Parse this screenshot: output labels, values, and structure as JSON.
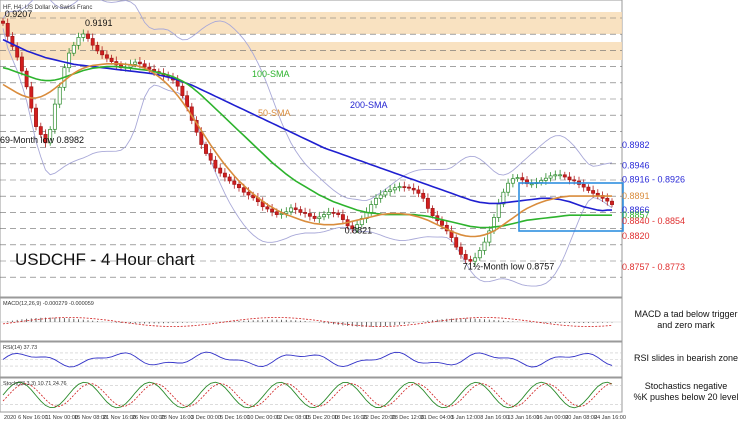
{
  "header": {
    "instrument_text": "HF, H4: US Dollar vs Swiss Franc"
  },
  "chart_data": {
    "type": "line",
    "title": "USDCHF - 4 Hour chart",
    "date_ticks": [
      "2020",
      "6 Nov 16:00",
      "11 Nov 00:00",
      "15 Nov 08:00",
      "21 Nov 16:00",
      "26 Nov 00:00",
      "28 Nov 16:00",
      "3 Dec 00:00",
      "5 Dec 16:00",
      "10 Dec 00:00",
      "12 Dec 08:00",
      "15 Dec 20:00",
      "18 Dec 16:00",
      "22 Dec 20:00",
      "28 Dec 12:00",
      "31 Dec 04:00",
      "5 Jan 12:00",
      "8 Jan 16:00",
      "13 Jan 16:00",
      "16 Jan 00:00",
      "20 Jan 08:00",
      "24 Jan 16:00"
    ],
    "price_range": [
      0.872,
      0.923
    ],
    "price_levels": [
      {
        "label": "0.8982",
        "value": 0.8982,
        "color": "#2a2ad8"
      },
      {
        "label": "0.8946",
        "value": 0.8946,
        "color": "#2a2ad8"
      },
      {
        "label": "0.8916 - 0.8926",
        "value": 0.8921,
        "color": "#2a2ad8"
      },
      {
        "label": "0.8891",
        "value": 0.8891,
        "color": "#d98c3c"
      },
      {
        "label": "0.8866",
        "value": 0.8866,
        "color": "#2a2ad8"
      },
      {
        "label": "0.8857",
        "value": 0.8857,
        "color": "#2db32d"
      },
      {
        "label": "0.8840 - 0.8854",
        "value": 0.8847,
        "color": "#e03030"
      },
      {
        "label": "0.8820",
        "value": 0.882,
        "color": "#e03030"
      },
      {
        "label": "0.8757 - 0.8773",
        "value": 0.8765,
        "color": "#e03030"
      }
    ],
    "annotations": [
      {
        "text": "0.9207",
        "x_index": 1,
        "value": 0.9207
      },
      {
        "text": "0.9191",
        "x_index": 18,
        "value": 0.9191
      },
      {
        "text": "69-Month low 0.8982",
        "x_index": 0,
        "value": 0.8982
      },
      {
        "text": "0.8821",
        "x_index": 73,
        "value": 0.8821
      },
      {
        "text": "71½-Month low 0.8757",
        "x_index": 98,
        "value": 0.8757
      }
    ],
    "sma_labels": {
      "sma100": "100-SMA",
      "sma50": "50-SMA",
      "sma200": "200-SMA"
    },
    "series": [
      {
        "name": "Close",
        "color": "#222222",
        "values": [
          0.9199,
          0.9176,
          0.9158,
          0.9139,
          0.9114,
          0.9086,
          0.9048,
          0.9015,
          0.9001,
          0.8986,
          0.901,
          0.9055,
          0.9085,
          0.912,
          0.9146,
          0.916,
          0.9174,
          0.918,
          0.9172,
          0.916,
          0.915,
          0.9143,
          0.9137,
          0.9131,
          0.9125,
          0.912,
          0.9121,
          0.9126,
          0.913,
          0.9127,
          0.9121,
          0.9117,
          0.9113,
          0.911,
          0.9106,
          0.9103,
          0.9098,
          0.9087,
          0.907,
          0.905,
          0.9026,
          0.9005,
          0.8983,
          0.8967,
          0.8955,
          0.8941,
          0.8932,
          0.8925,
          0.8918,
          0.8912,
          0.8906,
          0.8898,
          0.8893,
          0.8888,
          0.8881,
          0.8872,
          0.8868,
          0.8863,
          0.8858,
          0.886,
          0.8863,
          0.887,
          0.8867,
          0.8862,
          0.886,
          0.8855,
          0.8851,
          0.8854,
          0.8858,
          0.8862,
          0.8861,
          0.8858,
          0.8849,
          0.8838,
          0.8833,
          0.884,
          0.8851,
          0.8862,
          0.8876,
          0.8887,
          0.8893,
          0.8899,
          0.8902,
          0.8906,
          0.8908,
          0.8907,
          0.8905,
          0.8902,
          0.8896,
          0.8887,
          0.8869,
          0.8856,
          0.8847,
          0.8839,
          0.8829,
          0.8817,
          0.88,
          0.8787,
          0.8778,
          0.8775,
          0.8781,
          0.8794,
          0.8809,
          0.8829,
          0.8853,
          0.8877,
          0.8898,
          0.8914,
          0.8922,
          0.8924,
          0.892,
          0.8913,
          0.8913,
          0.8915,
          0.8919,
          0.8923,
          0.8927,
          0.8929,
          0.8929,
          0.8925,
          0.892,
          0.8918,
          0.8912,
          0.8907,
          0.8901,
          0.8896,
          0.8892,
          0.8887,
          0.8882,
          0.8876
        ]
      },
      {
        "name": "200-SMA",
        "color": "#1f1fd0",
        "values": [
          0.917,
          0.9166,
          0.9162,
          0.9158,
          0.9154,
          0.915,
          0.9147,
          0.9144,
          0.9141,
          0.9138,
          0.9136,
          0.9134,
          0.9132,
          0.913,
          0.9128,
          0.9126,
          0.9125,
          0.9124,
          0.9123,
          0.9122,
          0.9121,
          0.912,
          0.9119,
          0.9118,
          0.9117,
          0.9116,
          0.9115,
          0.9114,
          0.9113,
          0.9112,
          0.9111,
          0.911,
          0.9109,
          0.9107,
          0.9105,
          0.9103,
          0.9101,
          0.9098,
          0.9095,
          0.9092,
          0.9089,
          0.9085,
          0.9081,
          0.9077,
          0.9073,
          0.9069,
          0.9065,
          0.9061,
          0.9057,
          0.9053,
          0.9049,
          0.9045,
          0.9041,
          0.9037,
          0.9033,
          0.9029,
          0.9025,
          0.9021,
          0.9017,
          0.9013,
          0.9009,
          0.9005,
          0.9001,
          0.8997,
          0.8993,
          0.8989,
          0.8985,
          0.8981,
          0.8977,
          0.8974,
          0.8971,
          0.8968,
          0.8965,
          0.8962,
          0.8959,
          0.8956,
          0.8953,
          0.895,
          0.8947,
          0.8944,
          0.8941,
          0.8938,
          0.8935,
          0.8932,
          0.8929,
          0.8926,
          0.8923,
          0.892,
          0.8917,
          0.8914,
          0.8911,
          0.8908,
          0.8905,
          0.8902,
          0.8899,
          0.8896,
          0.8893,
          0.889,
          0.8887,
          0.8884,
          0.8882,
          0.888,
          0.8879,
          0.8878,
          0.8878,
          0.8878,
          0.8879,
          0.888,
          0.8881,
          0.8882,
          0.8883,
          0.8884,
          0.8885,
          0.8886,
          0.8887,
          0.8887,
          0.8887,
          0.8886,
          0.8885,
          0.8883,
          0.8881,
          0.8878,
          0.8875,
          0.8872,
          0.887,
          0.8868,
          0.8866,
          0.8865,
          0.8866,
          0.8866
        ]
      },
      {
        "name": "100-SMA",
        "color": "#2db32d",
        "values": [
          0.912,
          0.9118,
          0.9115,
          0.9112,
          0.9109,
          0.9106,
          0.9103,
          0.91,
          0.9098,
          0.9097,
          0.9097,
          0.9098,
          0.91,
          0.9103,
          0.9106,
          0.9109,
          0.9112,
          0.9115,
          0.9117,
          0.9119,
          0.912,
          0.9121,
          0.9122,
          0.9122,
          0.9122,
          0.9121,
          0.912,
          0.9119,
          0.9118,
          0.9117,
          0.9116,
          0.9115,
          0.9113,
          0.9111,
          0.9109,
          0.9107,
          0.9104,
          0.91,
          0.9096,
          0.9091,
          0.9085,
          0.9078,
          0.9071,
          0.9063,
          0.9055,
          0.9047,
          0.9039,
          0.9031,
          0.9023,
          0.9015,
          0.9007,
          0.8999,
          0.8991,
          0.8983,
          0.8975,
          0.8967,
          0.8959,
          0.8951,
          0.8944,
          0.8937,
          0.893,
          0.8924,
          0.8918,
          0.8913,
          0.8908,
          0.8903,
          0.8898,
          0.8893,
          0.8889,
          0.8885,
          0.8881,
          0.8878,
          0.8875,
          0.8872,
          0.8869,
          0.8866,
          0.8864,
          0.8862,
          0.8861,
          0.886,
          0.8859,
          0.8858,
          0.8858,
          0.8858,
          0.8858,
          0.8858,
          0.8858,
          0.8858,
          0.8857,
          0.8856,
          0.8855,
          0.8853,
          0.8851,
          0.8849,
          0.8847,
          0.8845,
          0.8843,
          0.8841,
          0.8839,
          0.8837,
          0.8836,
          0.8835,
          0.8835,
          0.8835,
          0.8836,
          0.8837,
          0.8838,
          0.884,
          0.8842,
          0.8844,
          0.8846,
          0.8848,
          0.8849,
          0.885,
          0.8851,
          0.8852,
          0.8853,
          0.8854,
          0.8855,
          0.8856,
          0.8857,
          0.8857,
          0.8857,
          0.8857,
          0.8857,
          0.8857,
          0.8857,
          0.8857,
          0.8857,
          0.8857
        ]
      },
      {
        "name": "50-SMA",
        "color": "#d98c3c",
        "values": [
          0.909,
          0.9085,
          0.908,
          0.9075,
          0.9071,
          0.9068,
          0.9066,
          0.9066,
          0.9068,
          0.9072,
          0.9077,
          0.9083,
          0.909,
          0.9097,
          0.9104,
          0.911,
          0.9115,
          0.9119,
          0.9122,
          0.9124,
          0.9125,
          0.9126,
          0.9127,
          0.9127,
          0.9127,
          0.9127,
          0.9126,
          0.9125,
          0.9124,
          0.9122,
          0.9119,
          0.9115,
          0.911,
          0.9104,
          0.9097,
          0.9089,
          0.908,
          0.907,
          0.9059,
          0.9047,
          0.9034,
          0.9021,
          0.9008,
          0.8995,
          0.8982,
          0.897,
          0.8958,
          0.8947,
          0.8937,
          0.8927,
          0.8918,
          0.891,
          0.8902,
          0.8895,
          0.8888,
          0.8882,
          0.8876,
          0.8871,
          0.8866,
          0.8862,
          0.8858,
          0.8855,
          0.8852,
          0.8849,
          0.8846,
          0.8844,
          0.8842,
          0.8841,
          0.884,
          0.884,
          0.884,
          0.8841,
          0.8842,
          0.8844,
          0.8846,
          0.8848,
          0.885,
          0.8852,
          0.8854,
          0.8856,
          0.8858,
          0.8859,
          0.886,
          0.886,
          0.886,
          0.8859,
          0.8858,
          0.8856,
          0.8854,
          0.8851,
          0.8848,
          0.8844,
          0.884,
          0.8836,
          0.8832,
          0.8828,
          0.8825,
          0.8822,
          0.882,
          0.8819,
          0.8819,
          0.882,
          0.8822,
          0.8825,
          0.8829,
          0.8834,
          0.884,
          0.8846,
          0.8852,
          0.8858,
          0.8864,
          0.8869,
          0.8873,
          0.8877,
          0.888,
          0.8883,
          0.8885,
          0.8887,
          0.8889,
          0.889,
          0.8891,
          0.8891,
          0.8891,
          0.8891,
          0.8891,
          0.8891,
          0.8891,
          0.8891,
          0.8891,
          0.8891
        ]
      }
    ],
    "indicators": [
      {
        "name": "MACD(12,26,9)",
        "header": "MACD(12,26,9) -0.000279 -0.000059",
        "note_lines": [
          "MACD a tad below trigger",
          "and zero mark"
        ]
      },
      {
        "name": "RSI(14)",
        "header": "RSI(14) 37.73",
        "note_lines": [
          "RSI slides in bearish zone"
        ],
        "levels": [
          70,
          50,
          30
        ]
      },
      {
        "name": "Stochastic(23,3,3)",
        "header": "Stoch(23,3,3) 10.71 24.76",
        "note_lines": [
          "Stochastics negative",
          "%K pushes below 20 level"
        ],
        "levels": [
          80,
          20
        ]
      }
    ]
  }
}
